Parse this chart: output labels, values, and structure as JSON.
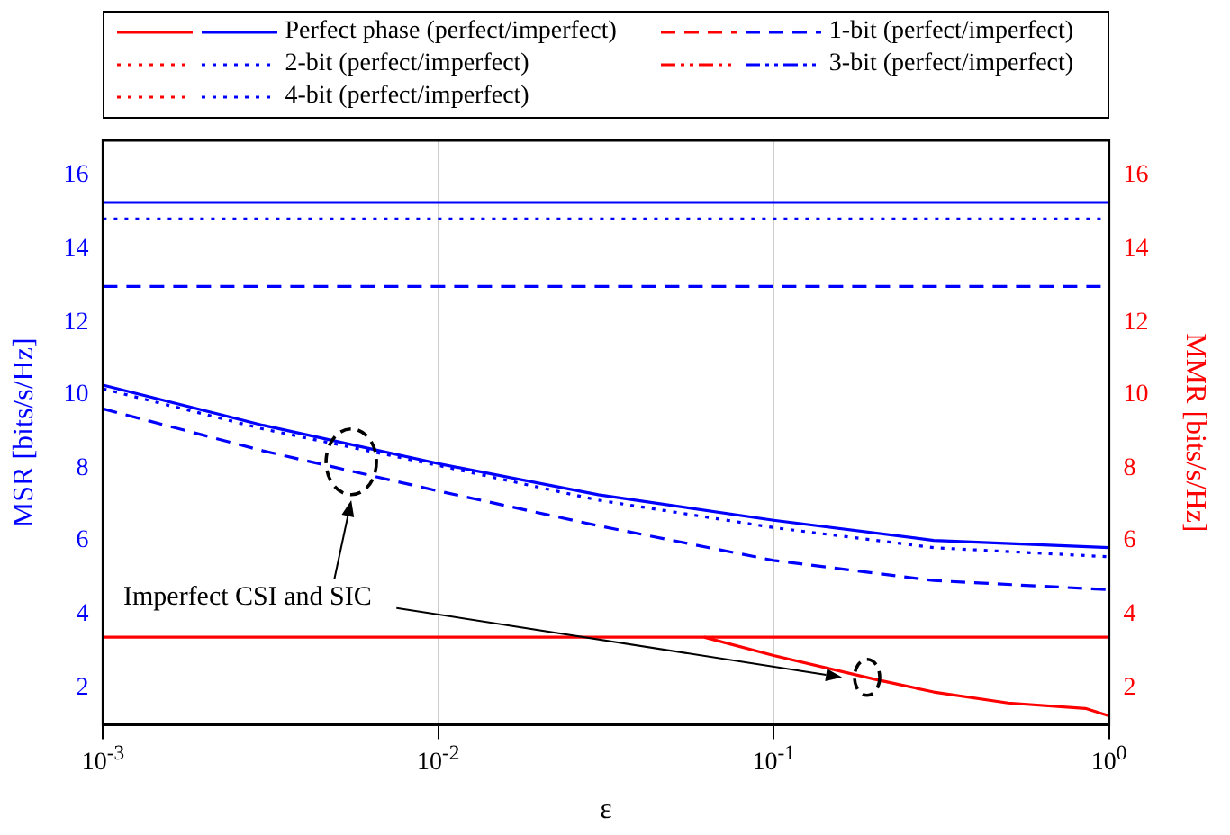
{
  "chart_data": {
    "type": "line",
    "xlabel": "ε",
    "ylabel": "MSR [bits/s/Hz]",
    "y2label": "MMR [bits/s/Hz]",
    "log": "x",
    "grid": "x",
    "legend": "top",
    "x": [
      0.001,
      0.003,
      0.01,
      0.03,
      0.1,
      0.3,
      1
    ],
    "xlim": [
      0.001,
      1
    ],
    "xticks": [
      {
        "value": 0.001,
        "label": "10$^{-3}$"
      },
      {
        "value": 0.01,
        "label": "10$^{-2}$"
      },
      {
        "value": 0.1,
        "label": "10$^{-1}$"
      },
      {
        "value": 1,
        "label": "10$^{0}$"
      }
    ],
    "ylim": [
      1,
      17
    ],
    "yticks": [
      2,
      4,
      6,
      8,
      10,
      12,
      14,
      16
    ],
    "y2lim": [
      1,
      17
    ],
    "y2ticks": [
      2,
      4,
      6,
      8,
      10,
      12,
      14,
      16
    ],
    "annotations": [
      "Imperfect CSI and SIC"
    ],
    "series": [
      {
        "name": "Perfect phase (perfect/imperfect)",
        "color": "#0000ff",
        "line_style": "solid",
        "x": [
          0.001,
          1
        ],
        "values": [
          15.3,
          15.3
        ]
      },
      {
        "name": "1-bit (perfect/imperfect)",
        "color": "#0000ff",
        "line_style": "dashed",
        "x": [
          0.001,
          1
        ],
        "values": [
          13.0,
          13.0
        ]
      },
      {
        "name": "2-bit (perfect/imperfect)",
        "color": "#0000ff",
        "line_style": "dotted",
        "x": [
          0.001,
          1
        ],
        "values": [
          14.85,
          14.85
        ]
      },
      {
        "name": "3-bit (perfect/imperfect)",
        "color": "#0000ff",
        "line_style": "dashdot",
        "values": [
          null,
          null,
          null,
          null,
          null,
          null,
          null
        ]
      },
      {
        "name": "4-bit (perfect/imperfect)",
        "color": "#0000ff",
        "line_style": "dotted",
        "values": [
          null,
          null,
          null,
          null,
          null,
          null,
          null
        ]
      },
      {
        "color": "#0000ff",
        "line_style": "solid",
        "values": [
          10.3,
          9.2,
          8.15,
          7.3,
          6.6,
          6.05,
          5.85
        ]
      },
      {
        "color": "#0000ff",
        "line_style": "dashed",
        "values": [
          9.65,
          8.5,
          7.4,
          6.45,
          5.5,
          4.95,
          4.7
        ]
      },
      {
        "color": "#0000ff",
        "line_style": "dotted",
        "values": [
          10.2,
          9.1,
          8.1,
          7.15,
          6.4,
          5.85,
          5.6
        ]
      },
      {
        "color": "#ff0000",
        "line_style": "solid",
        "axis": "y2",
        "x": [
          0.001,
          1
        ],
        "values": [
          3.4,
          3.4
        ]
      },
      {
        "color": "#ff0000",
        "line_style": "solid",
        "axis": "y2",
        "x": [
          0.062,
          0.1,
          0.2,
          0.3,
          0.5,
          0.85,
          1
        ],
        "values": [
          3.4,
          2.9,
          2.25,
          1.9,
          1.6,
          1.45,
          1.25
        ]
      }
    ]
  }
}
